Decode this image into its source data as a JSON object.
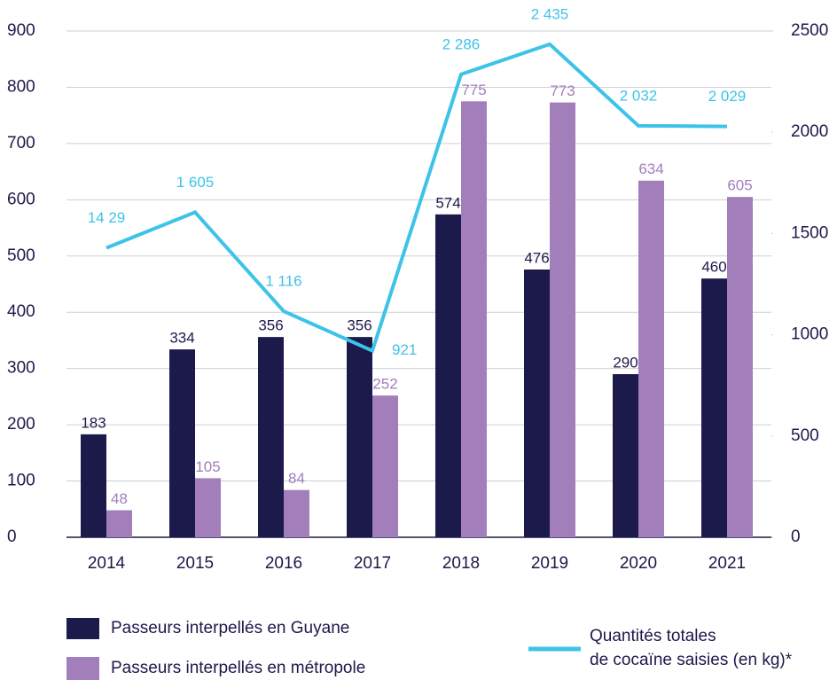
{
  "chart_data": {
    "type": "bar_line",
    "categories": [
      "2014",
      "2015",
      "2016",
      "2017",
      "2018",
      "2019",
      "2020",
      "2021"
    ],
    "series": [
      {
        "name": "Passeurs interpellés en Guyane",
        "color": "#1c1a4a",
        "values": [
          183,
          334,
          356,
          356,
          574,
          476,
          290,
          460
        ]
      },
      {
        "name": "Passeurs interpellés en métropole",
        "color": "#a27fbb",
        "values": [
          48,
          105,
          84,
          252,
          775,
          773,
          634,
          605
        ]
      },
      {
        "name": "Quantités totales\nde cocaïne saisies (en kg)*",
        "color": "#3ec3e8",
        "axis": "y2",
        "type": "line",
        "values": [
          1429,
          1605,
          1116,
          921,
          2286,
          2435,
          2032,
          2029
        ],
        "value_labels": [
          "14 29",
          "1 605",
          "1 116",
          "921",
          "2 286",
          "2 435",
          "2 032",
          "2 029"
        ]
      }
    ],
    "ylim": [
      0,
      900
    ],
    "yticks": [
      0,
      100,
      200,
      300,
      400,
      500,
      600,
      700,
      800,
      900
    ],
    "y2lim": [
      0,
      2500
    ],
    "y2ticks": [
      0,
      500,
      1000,
      1500,
      2000,
      2500
    ],
    "grid": true
  }
}
